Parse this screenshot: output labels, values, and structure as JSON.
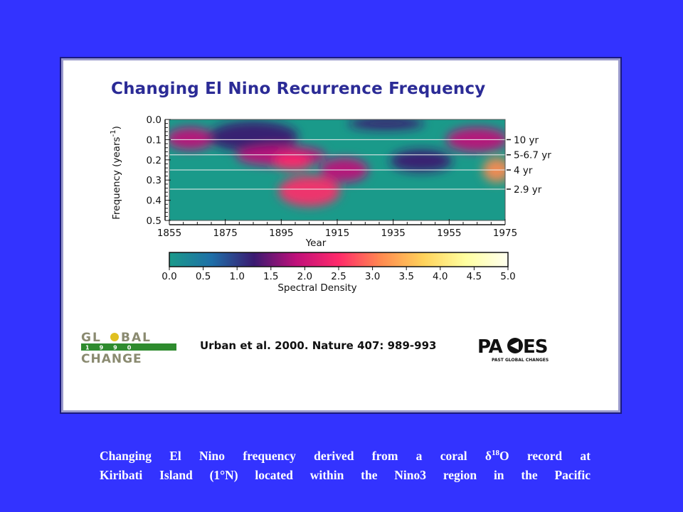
{
  "chart_data": {
    "type": "heatmap",
    "title": "Changing El Nino Recurrence Frequency",
    "xlabel": "Year",
    "ylabel": "Frequency (years",
    "ylabel_superscript": "-1",
    "ylabel_close": ")",
    "x_ticks": [
      "1855",
      "1875",
      "1895",
      "1915",
      "1935",
      "1955",
      "1975"
    ],
    "xlim": [
      1855,
      1975
    ],
    "y_ticks": [
      "0.0",
      "0.1",
      "0.2",
      "0.3",
      "0.4",
      "0.5"
    ],
    "ylim": [
      0.0,
      0.5
    ],
    "period_annotations": [
      {
        "label": "10 yr",
        "frequency": 0.1
      },
      {
        "label": "5-6.7 yr",
        "frequency": 0.175
      },
      {
        "label": "4 yr",
        "frequency": 0.25
      },
      {
        "label": "2.9 yr",
        "frequency": 0.345
      }
    ],
    "colorbar": {
      "label": "Spectral Density",
      "ticks": [
        "0.0",
        "0.5",
        "1.0",
        "1.5",
        "2.0",
        "2.5",
        "3.0",
        "3.5",
        "4.0",
        "4.5",
        "5.0"
      ],
      "range": [
        0.0,
        5.0
      ],
      "colors": [
        "#1a9a8a",
        "#1e6fa8",
        "#3a1a70",
        "#c0107a",
        "#ff2a6a",
        "#ff8a50",
        "#ffd25a",
        "#ffffa0",
        "#fffff0"
      ]
    },
    "regions": [
      {
        "x": [
          1855,
          1870
        ],
        "y": [
          0.05,
          0.14
        ],
        "density": 1.8
      },
      {
        "x": [
          1870,
          1900
        ],
        "y": [
          0.02,
          0.15
        ],
        "density": 1.4
      },
      {
        "x": [
          1880,
          1910
        ],
        "y": [
          0.14,
          0.22
        ],
        "density": 1.9
      },
      {
        "x": [
          1893,
          1905
        ],
        "y": [
          0.18,
          0.24
        ],
        "density": 2.6
      },
      {
        "x": [
          1895,
          1915
        ],
        "y": [
          0.29,
          0.42
        ],
        "density": 2.3
      },
      {
        "x": [
          1910,
          1925
        ],
        "y": [
          0.2,
          0.3
        ],
        "density": 2.0
      },
      {
        "x": [
          1920,
          1945
        ],
        "y": [
          0.0,
          0.04
        ],
        "density": 1.3
      },
      {
        "x": [
          1935,
          1955
        ],
        "y": [
          0.16,
          0.25
        ],
        "density": 1.5
      },
      {
        "x": [
          1955,
          1975
        ],
        "y": [
          0.05,
          0.15
        ],
        "density": 1.6
      },
      {
        "x": [
          1968,
          1976
        ],
        "y": [
          0.2,
          0.3
        ],
        "density": 3.0
      }
    ]
  },
  "citation": "Urban et al. 2000. Nature 407: 989-993",
  "logos": {
    "global_change": {
      "line1": "GLOBAL",
      "line2": "1 9 9 0",
      "line3": "CHANGE"
    },
    "pages": {
      "word": "PAGES",
      "tagline": "PAST GLOBAL CHANGES"
    }
  },
  "caption": {
    "line1_pre": "Changing El Nino frequency derived from a coral ",
    "delta": "δ",
    "isotope": "18",
    "line1_post": "O record at",
    "line2": "Kiribati Island (1°N) located within the Nino3 region in the Pacific"
  },
  "colors": {
    "background": "#3333ff",
    "title": "#2b2b96",
    "caption": "#ffffff"
  }
}
